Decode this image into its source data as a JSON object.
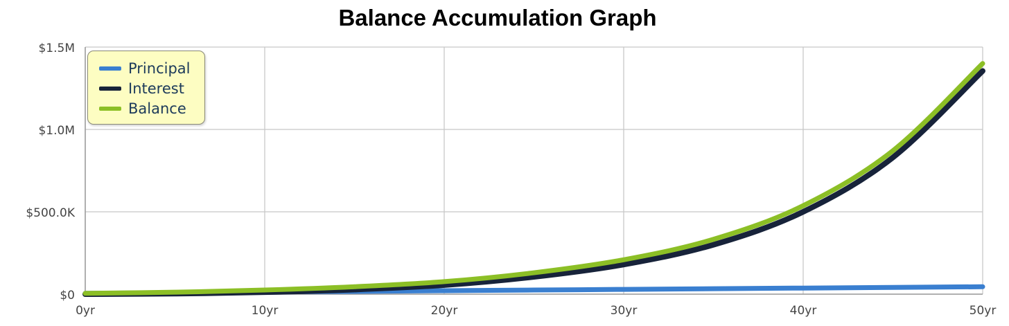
{
  "chart_data": {
    "type": "line",
    "title": "Balance Accumulation Graph",
    "xlabel": "",
    "ylabel": "",
    "x": [
      0,
      5,
      10,
      15,
      20,
      25,
      30,
      35,
      40,
      45,
      50
    ],
    "xlim": [
      0,
      50
    ],
    "ylim": [
      0,
      1500000
    ],
    "x_ticks": [
      0,
      10,
      20,
      30,
      40,
      50
    ],
    "x_tick_labels": [
      "0yr",
      "10yr",
      "20yr",
      "30yr",
      "40yr",
      "50yr"
    ],
    "y_ticks": [
      0,
      500000,
      1000000,
      1500000
    ],
    "y_tick_labels": [
      "$0",
      "$500.0K",
      "$1.0M",
      "$1.5M"
    ],
    "grid": true,
    "legend_position": "top-left",
    "series": [
      {
        "name": "Principal",
        "color": "#3a7fd0",
        "values": [
          5000,
          9000,
          13000,
          17000,
          21000,
          25000,
          29000,
          33000,
          37000,
          41000,
          45000
        ]
      },
      {
        "name": "Interest",
        "color": "#17233a",
        "values": [
          0,
          3000,
          12000,
          28000,
          55000,
          105000,
          180000,
          300000,
          500000,
          830000,
          1355000
        ]
      },
      {
        "name": "Balance",
        "color": "#8cbf26",
        "values": [
          5000,
          12000,
          25000,
          45000,
          76000,
          130000,
          209000,
          333000,
          537000,
          871000,
          1400000
        ]
      }
    ]
  }
}
